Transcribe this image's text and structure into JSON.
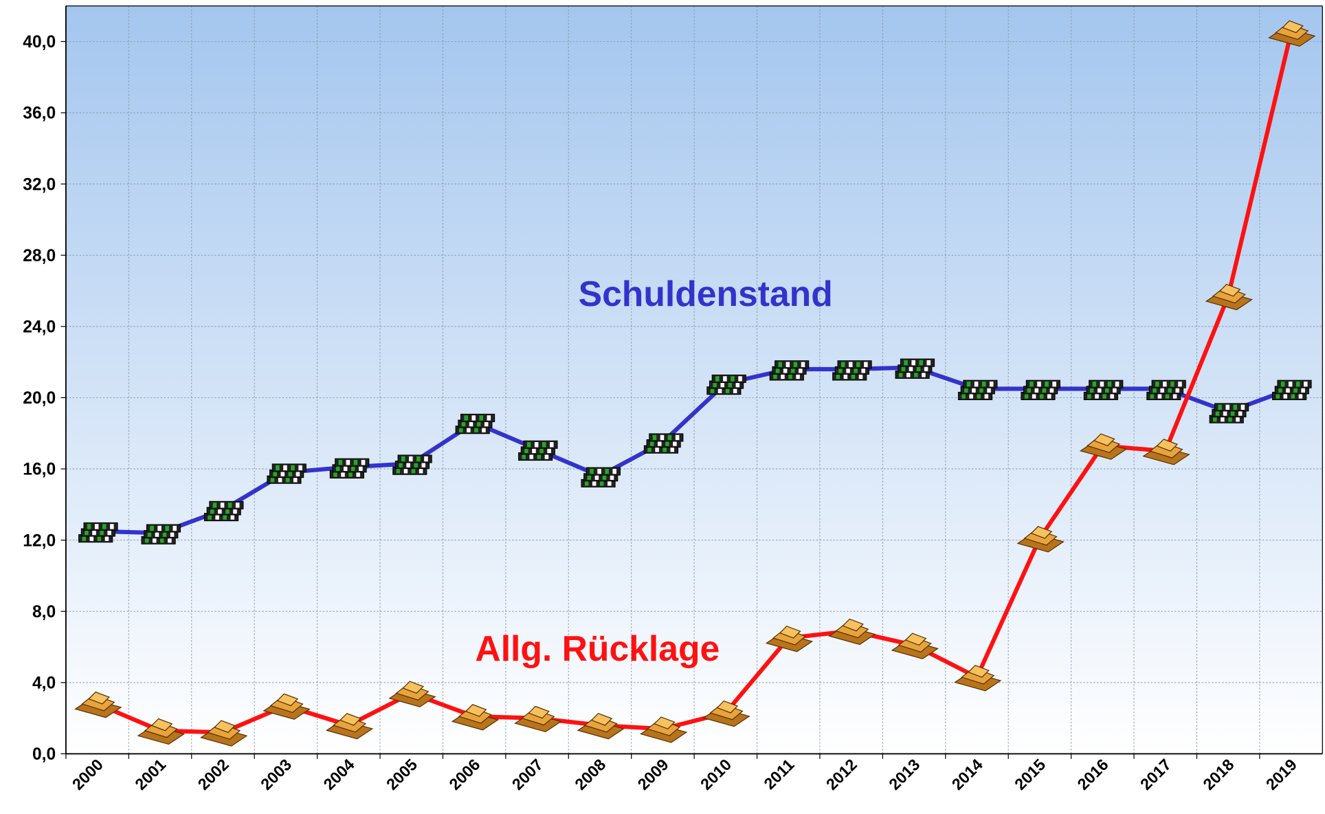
{
  "chart_data": {
    "type": "line",
    "categories": [
      "2000",
      "2001",
      "2002",
      "2003",
      "2004",
      "2005",
      "2006",
      "2007",
      "2008",
      "2009",
      "2010",
      "2011",
      "2012",
      "2013",
      "2014",
      "2015",
      "2016",
      "2017",
      "2018",
      "2019"
    ],
    "series": [
      {
        "name": "Schuldenstand",
        "color": "#3333cc",
        "values": [
          12.5,
          12.4,
          13.7,
          15.8,
          16.1,
          16.3,
          18.6,
          17.1,
          15.6,
          17.5,
          20.8,
          21.6,
          21.6,
          21.7,
          20.5,
          20.5,
          20.5,
          20.5,
          19.2,
          20.5
        ]
      },
      {
        "name": "Allg. Rücklage",
        "color": "#ff1111",
        "values": [
          2.8,
          1.3,
          1.2,
          2.7,
          1.6,
          3.4,
          2.1,
          2.0,
          1.6,
          1.4,
          2.3,
          6.5,
          6.9,
          6.1,
          4.3,
          12.1,
          17.3,
          17.0,
          25.7,
          40.5
        ]
      }
    ],
    "ylim": [
      0,
      42
    ],
    "yticks": [
      {
        "value": 0,
        "label": "0,0"
      },
      {
        "value": 4,
        "label": "4,0"
      },
      {
        "value": 8,
        "label": "8,0"
      },
      {
        "value": 12,
        "label": "12,0"
      },
      {
        "value": 16,
        "label": "16,0"
      },
      {
        "value": 20,
        "label": "20,0"
      },
      {
        "value": 24,
        "label": "24,0"
      },
      {
        "value": 28,
        "label": "28,0"
      },
      {
        "value": 32,
        "label": "32,0"
      },
      {
        "value": 36,
        "label": "36,0"
      },
      {
        "value": 40,
        "label": "40,0"
      }
    ],
    "grid": true
  }
}
